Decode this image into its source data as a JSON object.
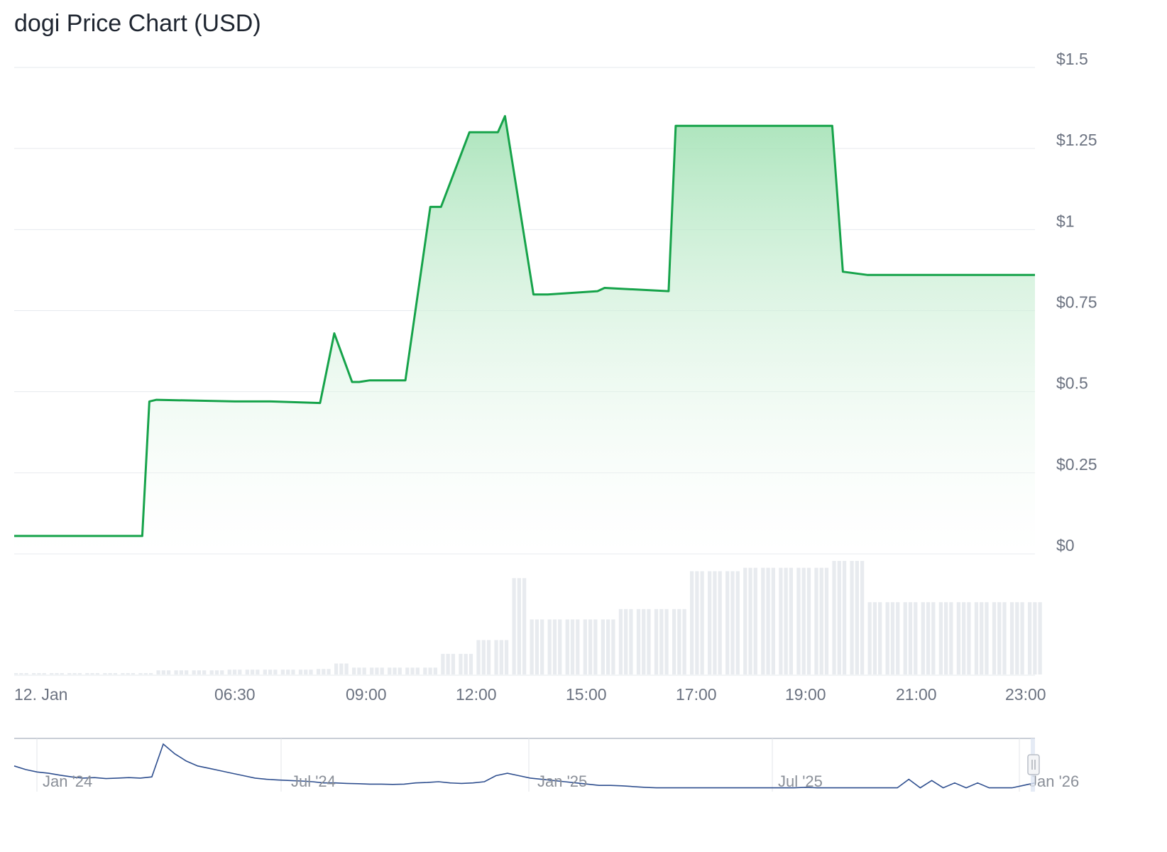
{
  "chart_data": {
    "type": "line",
    "title": "dogi Price Chart (USD)",
    "xlabel": "",
    "ylabel": "",
    "ylim": [
      0,
      1.5
    ],
    "grid": true,
    "series": [
      {
        "kind": "area",
        "x": [
          0,
          1.8,
          1.9,
          2.0,
          3.1,
          3.6,
          4.3,
          4.5,
          4.75,
          4.85,
          5.0,
          5.5,
          5.85,
          6.0,
          6.4,
          6.45,
          6.8,
          6.9,
          7.3,
          7.35,
          7.42,
          7.5,
          8.2,
          8.3,
          9.2,
          9.3,
          9.5,
          10.0,
          11.0,
          11.5,
          11.65,
          12.0,
          13.0,
          14.0,
          14.1,
          14.2,
          14.35
        ],
        "values": [
          0.055,
          0.055,
          0.47,
          0.475,
          0.47,
          0.47,
          0.465,
          0.68,
          0.53,
          0.53,
          0.535,
          0.535,
          1.07,
          1.07,
          1.3,
          1.3,
          1.3,
          1.35,
          0.8,
          0.8,
          0.8,
          0.8,
          0.81,
          0.82,
          0.81,
          1.32,
          1.32,
          1.32,
          1.32,
          1.32,
          0.87,
          0.86,
          0.86,
          0.86,
          0.86,
          0.86,
          0.86
        ]
      },
      {
        "kind": "volume",
        "x": [
          0,
          0.25,
          0.5,
          0.75,
          1.0,
          1.25,
          1.5,
          1.75,
          2.0,
          2.25,
          2.5,
          2.75,
          3.0,
          3.25,
          3.5,
          3.75,
          4.0,
          4.25,
          4.5,
          4.75,
          5.0,
          5.25,
          5.5,
          5.75,
          6.0,
          6.25,
          6.5,
          6.75,
          7.0,
          7.25,
          7.5,
          7.75,
          8.0,
          8.25,
          8.5,
          8.75,
          9.0,
          9.25,
          9.5,
          9.75,
          10.0,
          10.25,
          10.5,
          10.75,
          11.0,
          11.25,
          11.5,
          11.75,
          12.0,
          12.25,
          12.5,
          12.75,
          13.0,
          13.25,
          13.5,
          13.75,
          14.0,
          14.25
        ],
        "values": [
          2,
          2,
          2,
          2,
          2,
          2,
          2,
          2,
          6,
          6,
          6,
          6,
          7,
          7,
          7,
          7,
          7,
          8,
          16,
          10,
          10,
          10,
          10,
          10,
          30,
          30,
          50,
          50,
          140,
          80,
          80,
          80,
          80,
          80,
          95,
          95,
          95,
          95,
          150,
          150,
          150,
          155,
          155,
          155,
          155,
          155,
          165,
          165,
          105,
          105,
          105,
          105,
          105,
          105,
          105,
          105,
          105,
          105
        ]
      }
    ],
    "y_ticks": [
      "$1.5",
      "$1.25",
      "$1",
      "$0.75",
      "$0.5",
      "$0.25",
      "$0"
    ],
    "x_ticks": [
      "12. Jan",
      "06:30",
      "09:00",
      "12:00",
      "15:00",
      "17:00",
      "19:00",
      "21:00",
      "23:00"
    ],
    "navigator": {
      "labels": [
        "Jan '24",
        "Jul '24",
        "Jan '25",
        "Jul '25",
        "Jan '26"
      ],
      "values": [
        1.0,
        0.85,
        0.75,
        0.7,
        0.62,
        0.55,
        0.5,
        0.52,
        0.48,
        0.5,
        0.52,
        0.5,
        0.55,
        1.9,
        1.5,
        1.2,
        1.0,
        0.9,
        0.8,
        0.7,
        0.6,
        0.5,
        0.45,
        0.42,
        0.4,
        0.38,
        0.35,
        0.3,
        0.3,
        0.28,
        0.27,
        0.25,
        0.25,
        0.24,
        0.25,
        0.3,
        0.32,
        0.35,
        0.3,
        0.28,
        0.3,
        0.35,
        0.6,
        0.7,
        0.6,
        0.5,
        0.45,
        0.4,
        0.35,
        0.3,
        0.25,
        0.2,
        0.2,
        0.18,
        0.15,
        0.12,
        0.1,
        0.1,
        0.1,
        0.1,
        0.1,
        0.1,
        0.1,
        0.1,
        0.1,
        0.1,
        0.1,
        0.1,
        0.1,
        0.12,
        0.1,
        0.1,
        0.1,
        0.1,
        0.1,
        0.1,
        0.1,
        0.1,
        0.45,
        0.1,
        0.4,
        0.1,
        0.3,
        0.1,
        0.3,
        0.1,
        0.1,
        0.1,
        0.2,
        0.3
      ]
    },
    "colors": {
      "line": "#16a34a",
      "area_top": "#a7e3b8",
      "grid": "#e6e9ee",
      "volume": "#e8ebef",
      "navigator_line": "#2f4f8f"
    }
  }
}
